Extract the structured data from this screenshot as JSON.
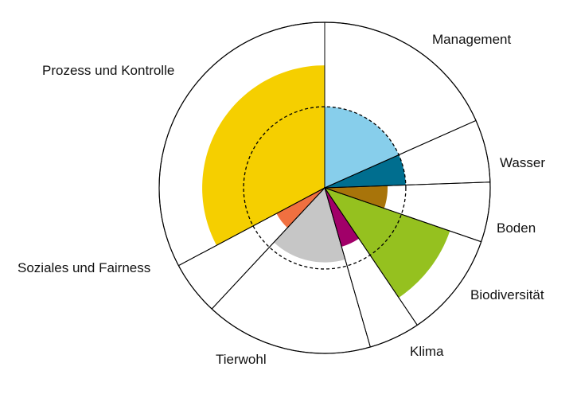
{
  "chart_data": {
    "type": "polar-area",
    "title": "",
    "grid": false,
    "legend": "none",
    "reference_ring": 0.49,
    "outline_color": "#000000",
    "reference_line_color": "#000000",
    "categories": [
      {
        "name": "Management",
        "start_deg": 0,
        "end_deg": 66,
        "value": 0.49,
        "color": "#87ceeb"
      },
      {
        "name": "Wasser",
        "start_deg": 66,
        "end_deg": 88,
        "value": 0.49,
        "color": "#006e8f"
      },
      {
        "name": "Boden",
        "start_deg": 88,
        "end_deg": 109,
        "value": 0.38,
        "color": "#a8740a"
      },
      {
        "name": "Biodiversität",
        "start_deg": 109,
        "end_deg": 146,
        "value": 0.8,
        "color": "#95c11f"
      },
      {
        "name": "Klima",
        "start_deg": 146,
        "end_deg": 164,
        "value": 0.37,
        "color": "#a10069"
      },
      {
        "name": "Tierwohl",
        "start_deg": 164,
        "end_deg": 223,
        "value": 0.45,
        "color": "#c6c6c6"
      },
      {
        "name": "Soziales und Fairness",
        "start_deg": 223,
        "end_deg": 242,
        "value": 0.33,
        "color": "#f07040"
      },
      {
        "name": "Prozess und Kontrolle",
        "start_deg": 242,
        "end_deg": 360,
        "value": 0.74,
        "color": "#f5cf00"
      }
    ]
  }
}
